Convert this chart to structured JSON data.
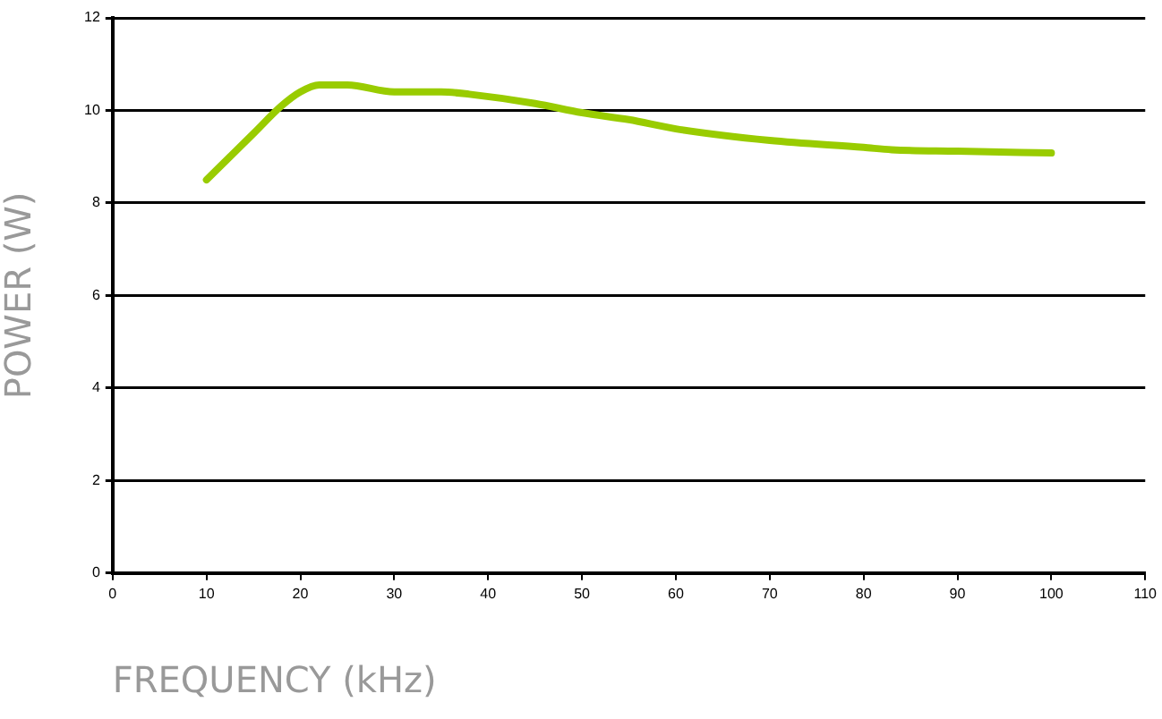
{
  "chart_data": {
    "type": "line",
    "xlabel": "FREQUENCY (kHz)",
    "ylabel": "POWER (W)",
    "x": [
      10,
      15,
      18,
      20,
      22,
      25,
      30,
      35,
      38,
      45,
      50,
      55,
      60,
      70,
      80,
      83,
      90,
      100
    ],
    "series": [
      {
        "color": "#99cc00",
        "values": [
          8.5,
          9.5,
          10.1,
          10.4,
          10.55,
          10.55,
          10.4,
          10.4,
          10.35,
          10.15,
          9.95,
          9.8,
          9.6,
          9.35,
          9.2,
          9.15,
          9.12,
          9.08
        ]
      }
    ],
    "xlim": [
      0,
      110
    ],
    "xticks": [
      0,
      10,
      20,
      30,
      40,
      50,
      60,
      70,
      80,
      90,
      100,
      110
    ],
    "ylim": [
      0,
      12
    ],
    "yticks": [
      0,
      2,
      4,
      6,
      8,
      10,
      12
    ],
    "grid": "y",
    "marker": "none",
    "line_style": "solid",
    "legend": false
  }
}
